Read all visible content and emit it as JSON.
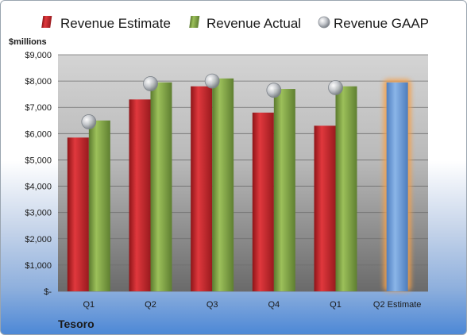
{
  "company": "Tesoro",
  "units_label": "$millions",
  "colors": {
    "estimate": "#c0262b",
    "actual": "#7ea046",
    "gaap": "#b5b9bf",
    "highlight_bar": "#6f9fd8",
    "highlight_glow": "#f5a04a"
  },
  "legend": {
    "estimate": "Revenue Estimate",
    "actual": "Revenue Actual",
    "gaap": "Revenue GAAP"
  },
  "chart_data": {
    "type": "bar",
    "categories": [
      "Q1",
      "Q2",
      "Q3",
      "Q4",
      "Q1",
      "Q2 Estimate"
    ],
    "series": [
      {
        "name": "Revenue Estimate",
        "values": [
          5850,
          7300,
          7800,
          6800,
          6300,
          null
        ]
      },
      {
        "name": "Revenue Actual",
        "values": [
          6500,
          7950,
          8100,
          7700,
          7800,
          7950
        ]
      },
      {
        "name": "Revenue GAAP",
        "values": [
          6450,
          7900,
          8000,
          7650,
          7750,
          null
        ]
      }
    ],
    "highlight_category": "Q2 Estimate",
    "ylabel": "$millions",
    "ylim": [
      0,
      9000
    ],
    "yticks": [
      0,
      1000,
      2000,
      3000,
      4000,
      5000,
      6000,
      7000,
      8000,
      9000
    ],
    "ytick_labels": [
      "$-",
      "$1,000",
      "$2,000",
      "$3,000",
      "$4,000",
      "$5,000",
      "$6,000",
      "$7,000",
      "$8,000",
      "$9,000"
    ],
    "grid": true,
    "legend_position": "top"
  }
}
